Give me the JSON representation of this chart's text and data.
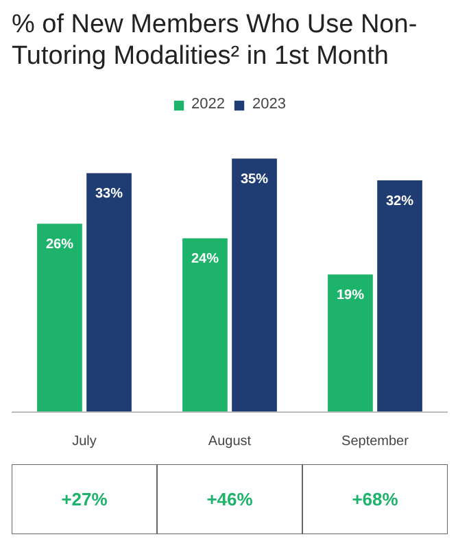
{
  "chart_data": {
    "type": "bar",
    "title": "% of New Members Who Use Non-Tutoring Modalities² in 1st Month",
    "categories": [
      "July",
      "August",
      "September"
    ],
    "series": [
      {
        "name": "2022",
        "color": "#1db36b",
        "values": [
          26,
          24,
          19
        ],
        "value_labels": [
          "26%",
          "24%",
          "19%"
        ]
      },
      {
        "name": "2023",
        "color": "#1f3d72",
        "values": [
          33,
          35,
          32
        ],
        "value_labels": [
          "33%",
          "35%",
          "32%"
        ]
      }
    ],
    "legend": "top",
    "grid": false,
    "annotations": [
      "+27%",
      "+46%",
      "+68%"
    ]
  }
}
